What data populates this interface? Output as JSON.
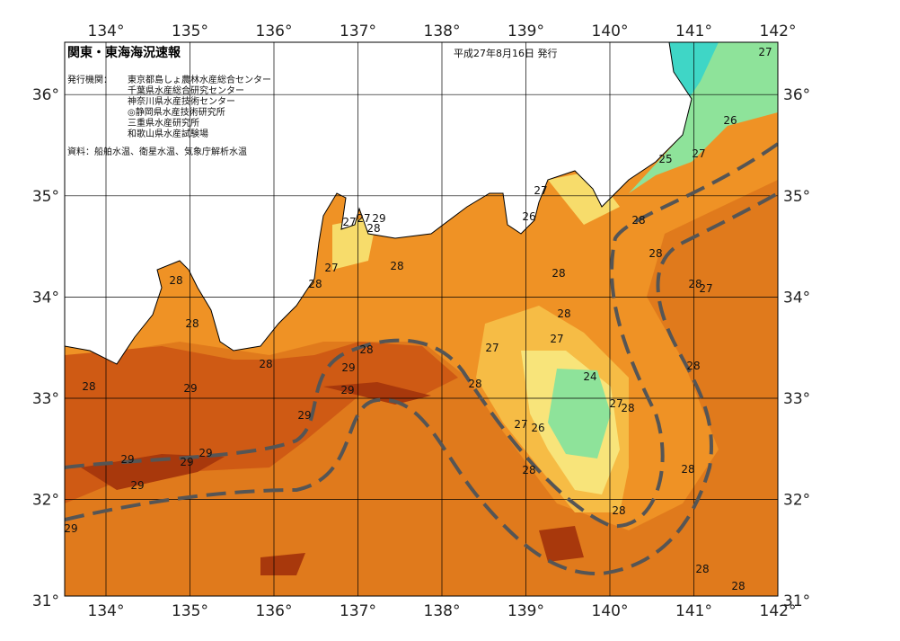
{
  "header": {
    "title": "関東・東海海況速報",
    "date": "平成27年8月16日 発行",
    "issuer_label": "発行機関：",
    "issuers": [
      "東京都島しょ農林水産総合センター",
      "千葉県水産総合研究センター",
      "神奈川県水産技術センター",
      "◎静岡県水産技術研究所",
      "三重県水産研究所",
      "和歌山県水産試験場"
    ],
    "source": "資料：船舶水温、衛星水温、気象庁解析水温"
  },
  "map": {
    "lon_ticks": [
      {
        "value": 134,
        "label": "134°"
      },
      {
        "value": 135,
        "label": "135°"
      },
      {
        "value": 136,
        "label": "136°"
      },
      {
        "value": 137,
        "label": "137°"
      },
      {
        "value": 138,
        "label": "138°"
      },
      {
        "value": 139,
        "label": "139°"
      },
      {
        "value": 140,
        "label": "140°"
      },
      {
        "value": 141,
        "label": "141°"
      },
      {
        "value": 142,
        "label": "142°"
      }
    ],
    "lat_ticks": [
      {
        "value": 31,
        "label": "31°"
      },
      {
        "value": 32,
        "label": "32°"
      },
      {
        "value": 33,
        "label": "33°"
      },
      {
        "value": 34,
        "label": "34°"
      },
      {
        "value": 35,
        "label": "35°"
      },
      {
        "value": 36,
        "label": "36°"
      }
    ],
    "contour_labels": [
      "27",
      "26",
      "25",
      "27",
      "27",
      "26",
      "28",
      "27",
      "27",
      "29",
      "28",
      "27",
      "28",
      "28",
      "28",
      "28",
      "28",
      "28",
      "27",
      "28",
      "28",
      "27",
      "27",
      "28",
      "28",
      "29",
      "28",
      "28",
      "29",
      "29",
      "24",
      "28",
      "27",
      "28",
      "29",
      "27",
      "26",
      "29",
      "29",
      "29",
      "29",
      "28",
      "28",
      "28",
      "29",
      "28",
      "28"
    ]
  }
}
